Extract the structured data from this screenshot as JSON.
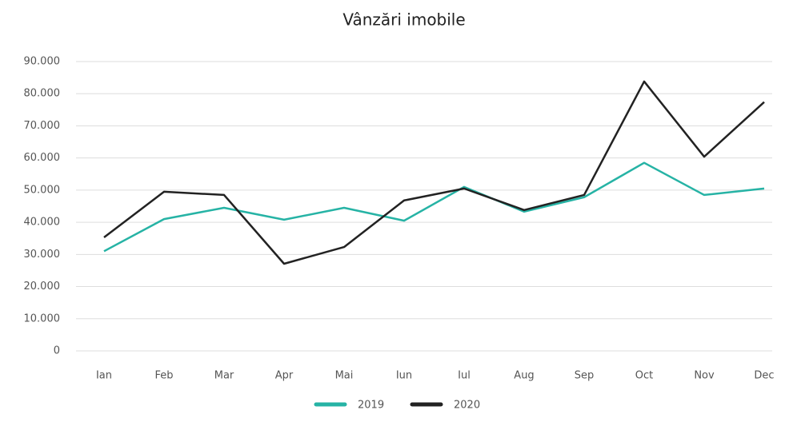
{
  "chart_data": {
    "type": "line",
    "title": "Vânzări imobile",
    "categories": [
      "Ian",
      "Feb",
      "Mar",
      "Apr",
      "Mai",
      "Iun",
      "Iul",
      "Aug",
      "Sep",
      "Oct",
      "Nov",
      "Dec"
    ],
    "series": [
      {
        "name": "2019",
        "color": "#26b3a5",
        "values": [
          31000,
          41000,
          44500,
          40800,
          44500,
          40500,
          51000,
          43300,
          47800,
          58500,
          48500,
          50500
        ]
      },
      {
        "name": "2020",
        "color": "#222222",
        "values": [
          35300,
          49500,
          48500,
          27100,
          32300,
          46800,
          50500,
          43800,
          48500,
          83800,
          60400,
          77400
        ]
      }
    ],
    "ylim": [
      0,
      90000
    ],
    "yticks": [
      0,
      {
        "value": 10000,
        "label": "10.000"
      },
      {
        "value": 20000,
        "label": "20.000"
      },
      {
        "value": 30000,
        "label": "30.000"
      },
      {
        "value": 40000,
        "label": "40.000"
      },
      {
        "value": 50000,
        "label": "50.000"
      },
      {
        "value": 60000,
        "label": "60.000"
      },
      {
        "value": 70000,
        "label": "70.000"
      },
      {
        "value": 80000,
        "label": "80.000"
      },
      {
        "value": 90000,
        "label": "90.000"
      }
    ],
    "grid": true,
    "legend": "bottom"
  }
}
